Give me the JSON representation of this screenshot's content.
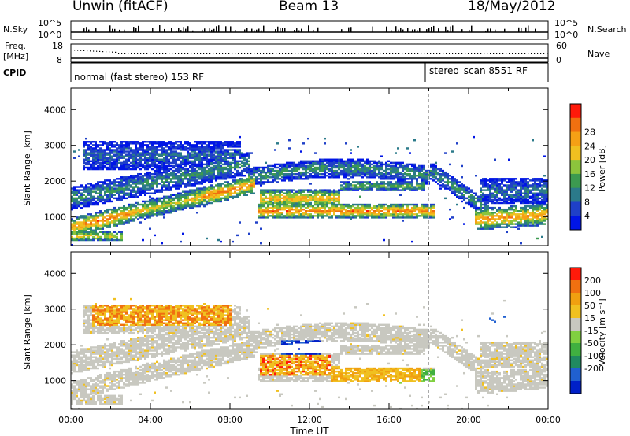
{
  "header": {
    "station": "Unwin (fitACF)",
    "beam": "Beam 13",
    "date": "18/May/2012"
  },
  "small_panels": {
    "nsky": {
      "label": "N.Sky",
      "right_label": "N.Search",
      "ticks_left": [
        "10^5",
        "10^0"
      ],
      "ticks_right": [
        "10^5",
        "10^0"
      ]
    },
    "freq": {
      "label": "Freq.",
      "unit": "[MHz]",
      "ticks_left": [
        "18",
        "8"
      ],
      "right_label": "Nave",
      "ticks_right": [
        "60",
        "0"
      ]
    },
    "cpid": {
      "label": "CPID",
      "modes": [
        {
          "name": "normal (fast stereo) 153 RF",
          "start_hour": 0
        },
        {
          "name": "stereo_scan 8551 RF",
          "start_hour": 18
        }
      ]
    }
  },
  "time_axis": {
    "label": "Time UT",
    "ticks": [
      "00:00",
      "04:00",
      "08:00",
      "12:00",
      "16:00",
      "20:00",
      "00:00"
    ],
    "range_hours": [
      0,
      24
    ]
  },
  "chart_data": [
    {
      "type": "heatmap",
      "name": "power",
      "ylabel": "Slant Range [km]",
      "yticks": [
        1000,
        2000,
        3000,
        4000
      ],
      "ylim": [
        200,
        4600
      ],
      "xlim": [
        0,
        24
      ],
      "colorbar": {
        "label": "Power [dB]",
        "ticks": [
          "4",
          "8",
          "12",
          "16",
          "20",
          "24",
          "28"
        ],
        "colors": [
          "#0015e6",
          "#1f40c8",
          "#2b7a8a",
          "#3c9a50",
          "#8cc43c",
          "#f0c020",
          "#f5a015",
          "#f07010",
          "#ff1a0a"
        ]
      }
    },
    {
      "type": "heatmap",
      "name": "velocity",
      "ylabel": "Slant Range [km]",
      "yticks": [
        1000,
        2000,
        3000,
        4000
      ],
      "ylim": [
        200,
        4600
      ],
      "xlim": [
        0,
        24
      ],
      "colorbar": {
        "label": "Velocity [m s⁻¹]",
        "ticks": [
          "200",
          "100",
          "50",
          "15",
          "-15",
          "-50",
          "-100",
          "-200"
        ],
        "colors": [
          "#0020c8",
          "#2060d0",
          "#208a60",
          "#40b040",
          "#80d040",
          "#c8c8c0",
          "#f0c020",
          "#f0a010",
          "#f07010",
          "#ff1a0a"
        ]
      }
    }
  ]
}
